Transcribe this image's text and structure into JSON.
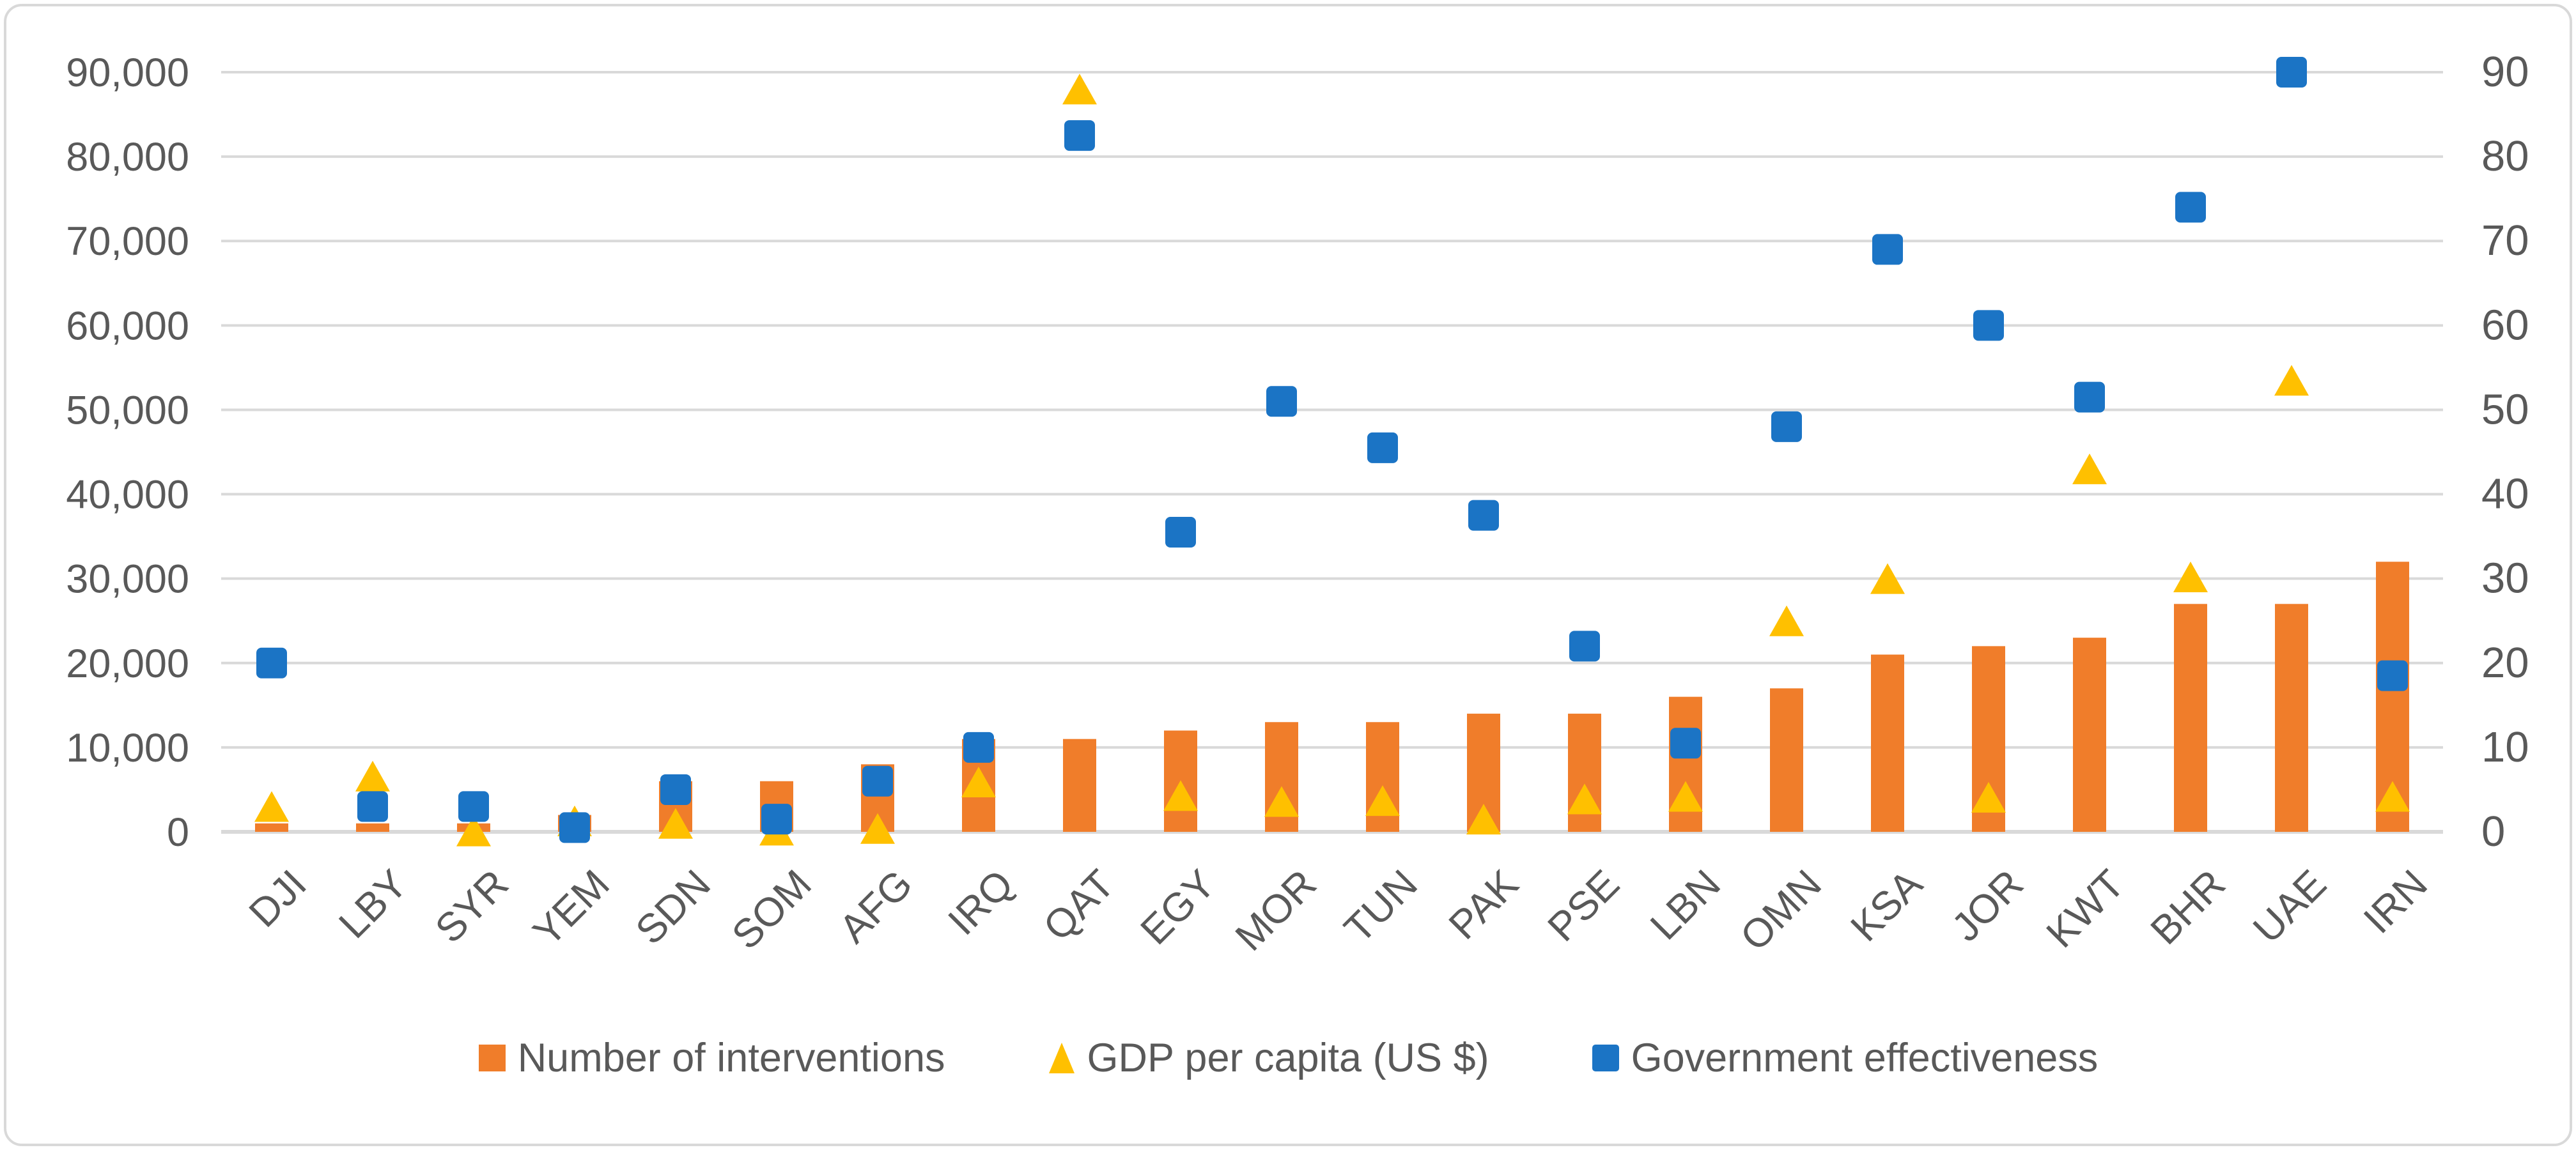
{
  "figure": {
    "background_color": "#FFFFFF",
    "border_color": "#D9D9D9",
    "text_color": "#595959",
    "gridline_color": "#D9D9D9"
  },
  "chart_data": {
    "type": "bar",
    "subtype": "combo-bar-with-scatter-markers",
    "title": "",
    "xlabel": "",
    "ylabel": "",
    "grid": true,
    "legend_position": "bottom",
    "categories": [
      "DJI",
      "LBY",
      "SYR",
      "YEM",
      "SDN",
      "SOM",
      "AFG",
      "IRQ",
      "QAT",
      "EGY",
      "MOR",
      "TUN",
      "PAK",
      "PSE",
      "LBN",
      "OMN",
      "KSA",
      "JOR",
      "KWT",
      "BHR",
      "UAE",
      "IRN"
    ],
    "series": [
      {
        "name": "Number of interventions",
        "type": "bar",
        "axis": "left",
        "marker": "square",
        "color": "#F07D2A",
        "values": [
          1000,
          1000,
          1000,
          2000,
          6000,
          6000,
          8000,
          11000,
          11000,
          12000,
          13000,
          13000,
          14000,
          14000,
          16000,
          17000,
          21000,
          22000,
          23000,
          27000,
          27000,
          32000
        ]
      },
      {
        "name": "GDP per capita (US $)",
        "type": "scatter",
        "axis": "left",
        "marker": "triangle",
        "color": "#FFC000",
        "values": [
          3000,
          6600,
          100,
          1300,
          1000,
          200,
          400,
          5900,
          88000,
          4300,
          3600,
          3700,
          1500,
          3900,
          4200,
          25000,
          30000,
          4100,
          43000,
          30200,
          53500,
          4200
        ]
      },
      {
        "name": "Government effectiveness",
        "type": "scatter",
        "axis": "right",
        "marker": "square",
        "color": "#1B74C5",
        "values": [
          20,
          3,
          3,
          0.5,
          5,
          1.5,
          6,
          10,
          82.5,
          35.5,
          51,
          45.5,
          37.5,
          22,
          10.5,
          48,
          69,
          60,
          51.5,
          74,
          90,
          18.5
        ]
      }
    ],
    "left_axis": {
      "min": 0,
      "max": 90000,
      "step": 10000,
      "tick_labels": [
        "0",
        "10,000",
        "20,000",
        "30,000",
        "40,000",
        "50,000",
        "60,000",
        "70,000",
        "80,000",
        "90,000"
      ]
    },
    "right_axis": {
      "min": 0,
      "max": 90,
      "step": 10,
      "tick_labels": [
        "0",
        "10",
        "20",
        "30",
        "40",
        "50",
        "60",
        "70",
        "80",
        "90"
      ]
    }
  }
}
